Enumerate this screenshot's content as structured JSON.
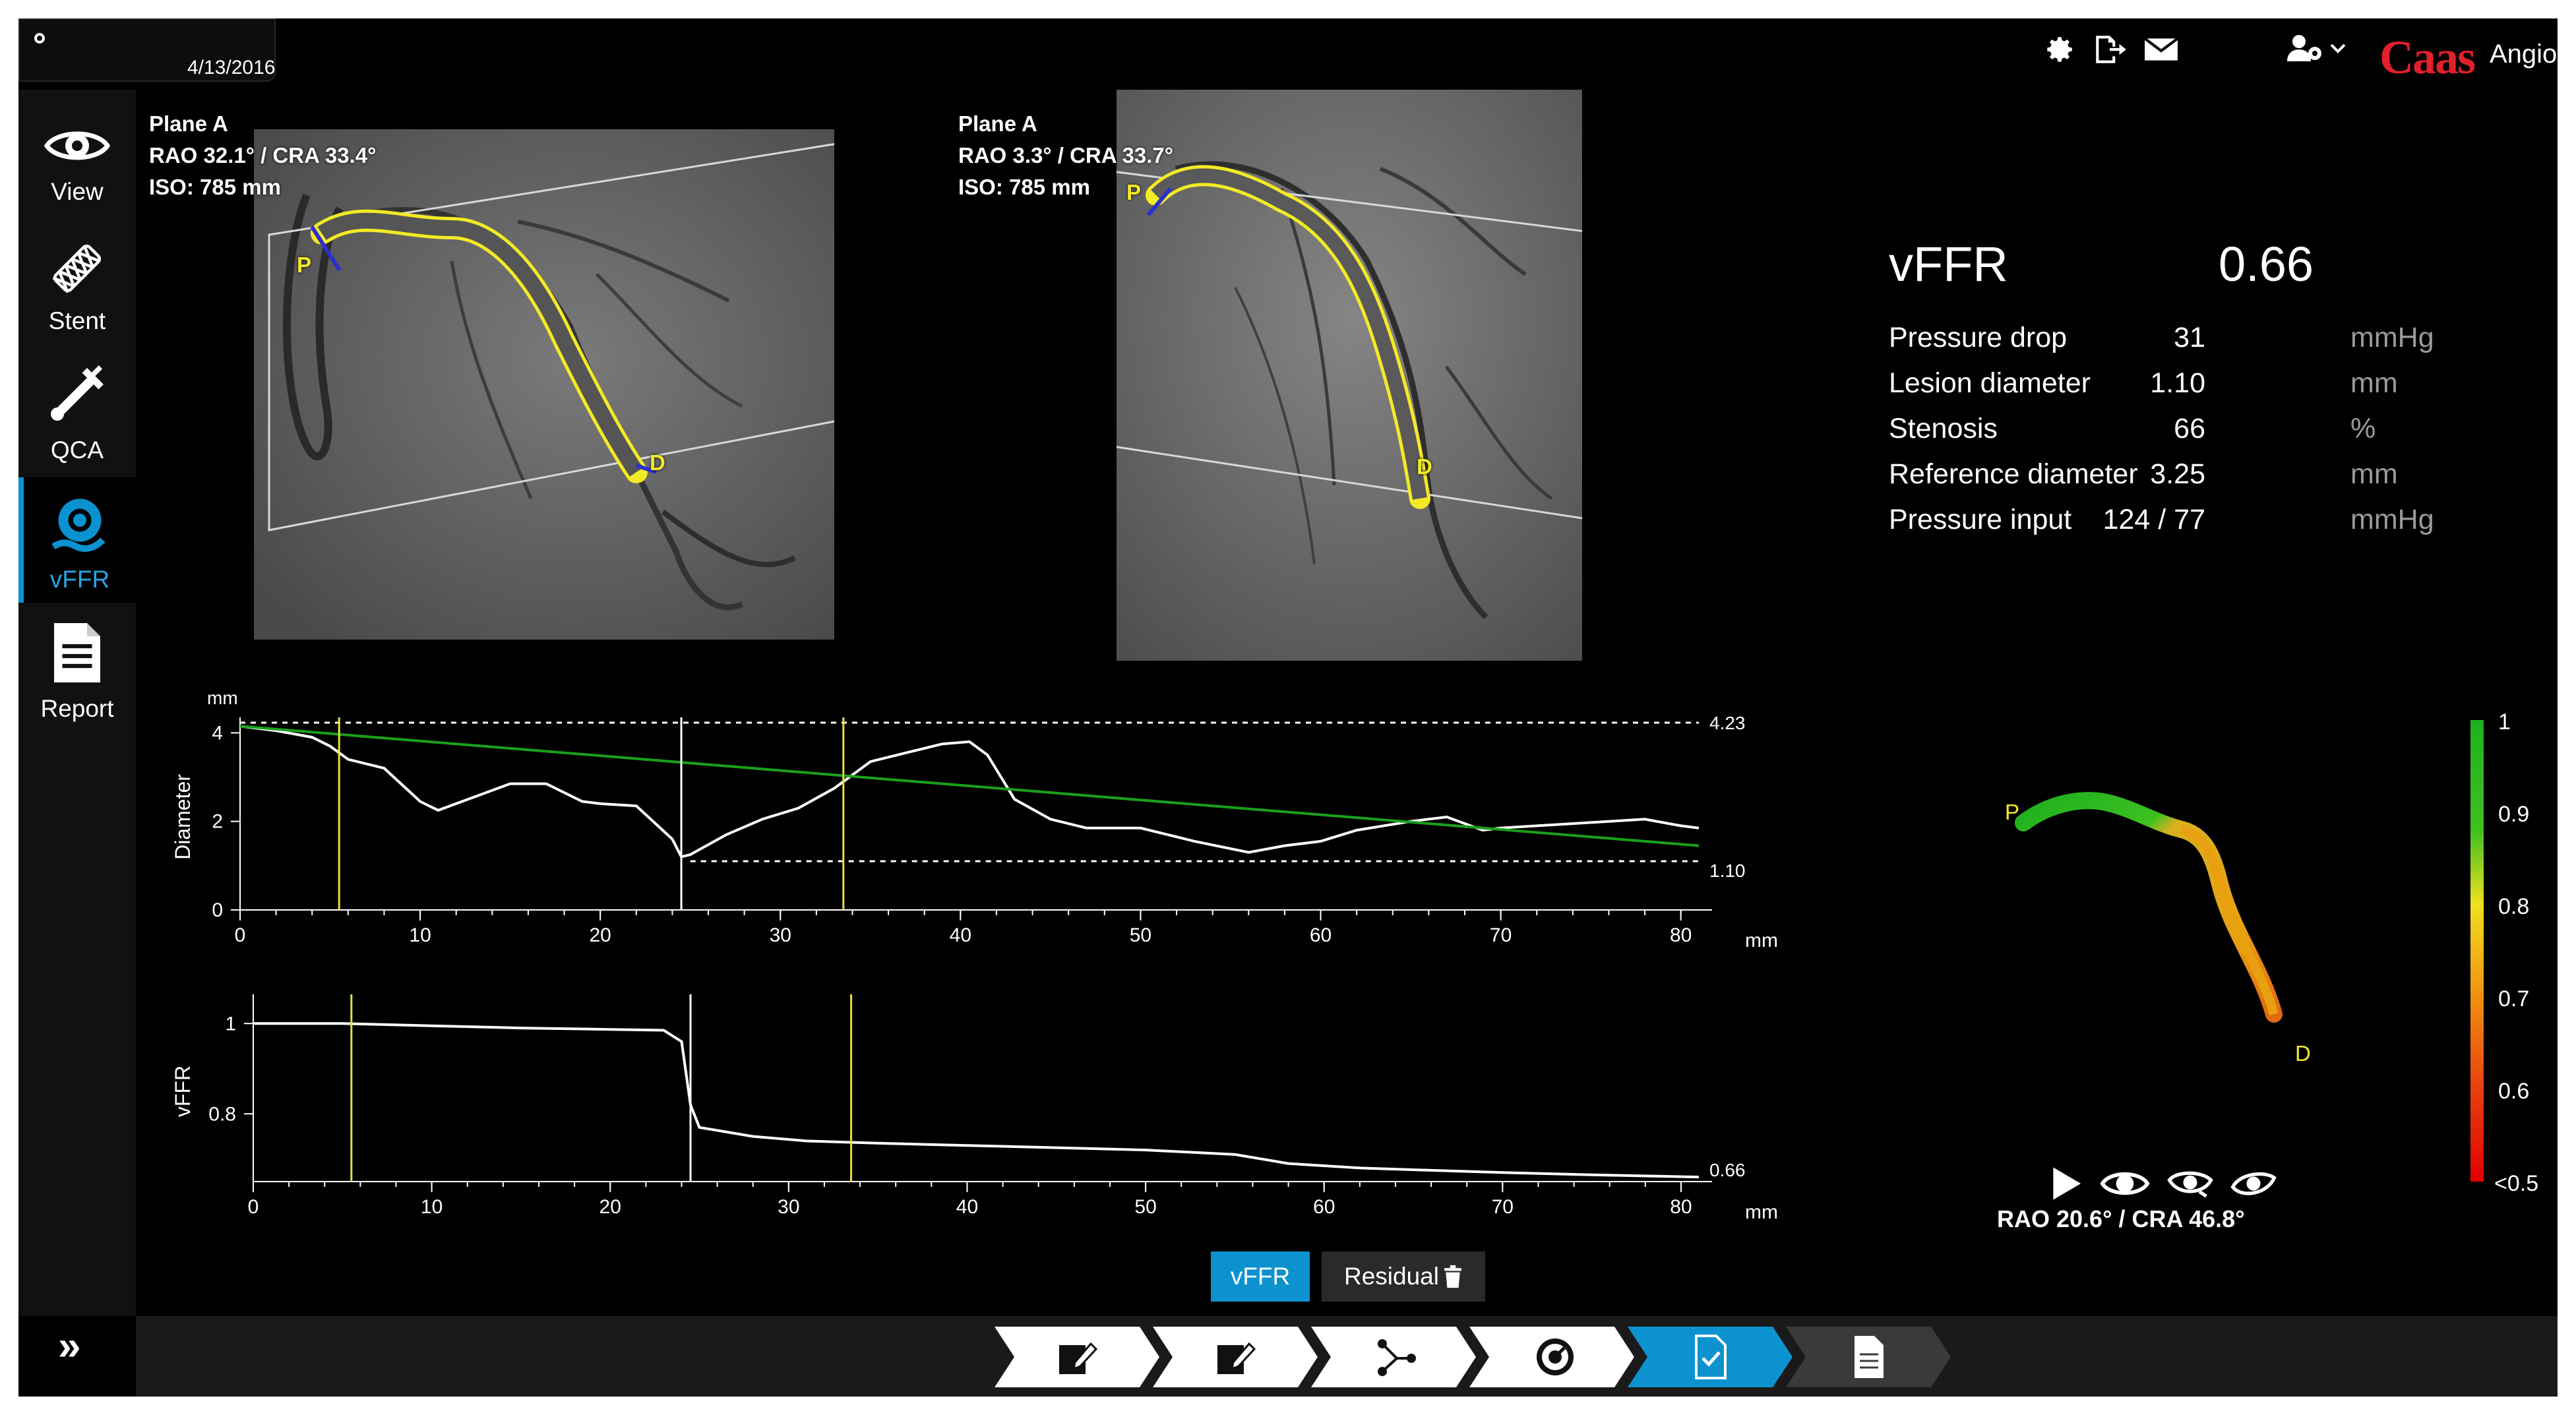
{
  "header": {
    "date": "4/13/2016",
    "brand_name": "Caas",
    "brand_sub": "Angio",
    "brand_color": "#e0202a",
    "icons": [
      "gear-icon",
      "export-icon",
      "mail-icon",
      "user-settings-icon",
      "chevron-down-icon"
    ]
  },
  "sidebar": {
    "accent": "#0a92d0",
    "items": [
      {
        "label": "View",
        "icon": "eye-icon"
      },
      {
        "label": "Stent",
        "icon": "stent-icon"
      },
      {
        "label": "QCA",
        "icon": "caliper-icon"
      },
      {
        "label": "vFFR",
        "icon": "vffr-icon"
      },
      {
        "label": "Report",
        "icon": "report-icon"
      }
    ],
    "active": "vFFR"
  },
  "angio_left": {
    "line1": "Plane A",
    "line2": "RAO 32.1° / CRA 33.4°",
    "line3": "ISO: 785 mm",
    "marker_p": "P",
    "marker_d": "D"
  },
  "angio_right": {
    "line1": "Plane A",
    "line2": "RAO 3.3° / CRA 33.7°",
    "line3": "ISO: 785 mm",
    "marker_p": "P",
    "marker_d": "D"
  },
  "results": {
    "title": "vFFR",
    "value": "0.66",
    "rows": [
      {
        "label": "Pressure drop",
        "value": "31",
        "unit": "mmHg"
      },
      {
        "label": "Lesion diameter",
        "value": "1.10",
        "unit": "mm"
      },
      {
        "label": "Stenosis",
        "value": "66",
        "unit": "%"
      },
      {
        "label": "Reference diameter",
        "value": "3.25",
        "unit": "mm"
      },
      {
        "label": "Pressure input",
        "value": "124 / 77",
        "unit": "mmHg"
      }
    ]
  },
  "chart_data": [
    {
      "type": "line",
      "xlabel": "mm",
      "ylabel": "Diameter",
      "yunit": "mm",
      "xlim": [
        0,
        81
      ],
      "ylim": [
        0,
        4.2
      ],
      "xticks": [
        0,
        10,
        20,
        30,
        40,
        50,
        60,
        70,
        80
      ],
      "yticks": [
        0,
        2,
        4
      ],
      "ref_max_label": "4.23",
      "ref_min_label": "1.10",
      "ref_max": 4.23,
      "ref_min": 1.1,
      "markers_x": [
        5.5,
        24.5,
        33.5
      ],
      "series": [
        {
          "color": "#ffffff",
          "x": [
            0,
            2,
            4,
            5,
            6,
            8,
            10,
            11,
            13,
            15,
            17,
            19,
            20,
            22,
            24,
            24.5,
            25,
            27,
            29,
            31,
            33,
            35,
            37,
            39,
            40.5,
            41.5,
            43,
            45,
            47,
            50,
            53,
            56,
            58,
            60,
            62,
            65,
            67,
            69,
            70,
            72,
            74,
            76,
            78,
            80,
            81
          ],
          "y": [
            4.15,
            4.05,
            3.9,
            3.7,
            3.4,
            3.2,
            2.45,
            2.25,
            2.55,
            2.85,
            2.85,
            2.45,
            2.4,
            2.35,
            1.6,
            1.2,
            1.25,
            1.7,
            2.05,
            2.3,
            2.75,
            3.35,
            3.55,
            3.75,
            3.8,
            3.5,
            2.5,
            2.05,
            1.85,
            1.85,
            1.55,
            1.3,
            1.45,
            1.55,
            1.8,
            2.0,
            2.1,
            1.8,
            1.85,
            1.9,
            1.95,
            2.0,
            2.05,
            1.9,
            1.85
          ]
        },
        {
          "color": "#1aa01a",
          "x": [
            0,
            81
          ],
          "y": [
            4.15,
            1.45
          ]
        }
      ]
    },
    {
      "type": "line",
      "xlabel": "mm",
      "ylabel": "vFFR",
      "xlim": [
        0,
        81
      ],
      "ylim": [
        0.65,
        1.05
      ],
      "xticks": [
        0,
        10,
        20,
        30,
        40,
        50,
        60,
        70,
        80
      ],
      "yticks": [
        0.8,
        1
      ],
      "end_value_label": "0.66",
      "markers_x": [
        5.5,
        24.5,
        33.5
      ],
      "series": [
        {
          "color": "#ffffff",
          "x": [
            0,
            5,
            10,
            15,
            20,
            23,
            24,
            24.5,
            25,
            28,
            31,
            35,
            40,
            45,
            50,
            55,
            58,
            62,
            66,
            70,
            75,
            81
          ],
          "y": [
            1.0,
            1.0,
            0.995,
            0.99,
            0.987,
            0.985,
            0.96,
            0.82,
            0.77,
            0.75,
            0.74,
            0.735,
            0.73,
            0.725,
            0.72,
            0.71,
            0.69,
            0.68,
            0.675,
            0.67,
            0.665,
            0.66
          ]
        }
      ]
    }
  ],
  "colorscale": {
    "labels": [
      "1",
      "0.9",
      "0.8",
      "0.7",
      "0.6",
      "<0.5"
    ]
  },
  "vessel3d": {
    "marker_p": "P",
    "marker_d": "D",
    "view_angle": "RAO 20.6° / CRA 46.8°",
    "view_icons": [
      "play-icon",
      "eye-icon",
      "eye-icon",
      "eye-icon"
    ]
  },
  "buttons": {
    "vffr": "vFFR",
    "residual": "Residual"
  },
  "workflow": {
    "steps": [
      "edit-icon",
      "edit-icon",
      "graph-icon",
      "gauge-icon",
      "check-doc-icon",
      "document-icon"
    ],
    "active_index": 4
  }
}
